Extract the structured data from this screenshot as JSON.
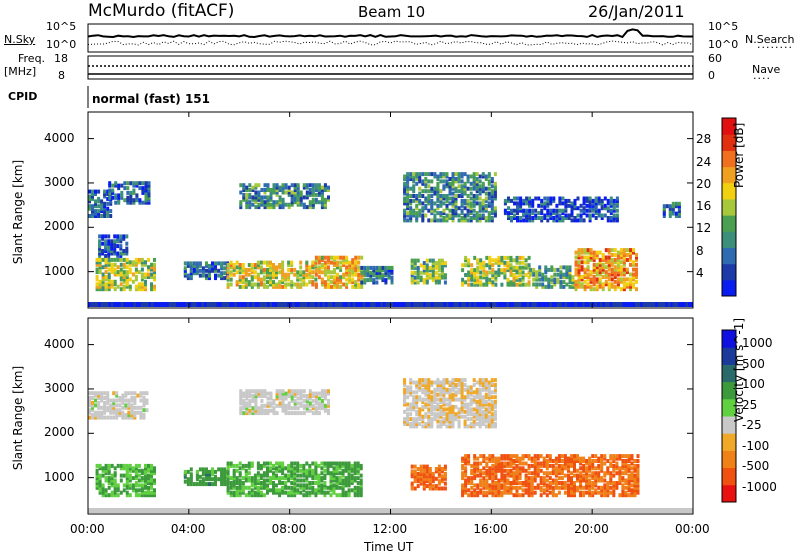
{
  "header": {
    "station": "McMurdo (fitACF)",
    "beam": "Beam 10",
    "date": "26/Jan/2011"
  },
  "params": {
    "nsky_label": "N.Sky",
    "nsky_ticks": [
      "10^5",
      "10^0"
    ],
    "nsearch_label": "N.Search",
    "nsearch_ticks": [
      "10^5",
      "10^0"
    ],
    "freq_label": "Freq.",
    "freq_unit": "[MHz]",
    "freq_ticks": [
      "18",
      "8"
    ],
    "nave_label": "Nave",
    "nave_ticks": [
      "60",
      "0"
    ],
    "cpid_label": "CPID",
    "cpid_value": "normal (fast) 151"
  },
  "colors": {
    "power": [
      "#0a1df0",
      "#1c3aa8",
      "#2f6bb0",
      "#3c8f7a",
      "#4aa050",
      "#a8c83c",
      "#f0d010",
      "#f0a020",
      "#f07020",
      "#e03010",
      "#e01010"
    ],
    "velocity": [
      "#e81010",
      "#f05010",
      "#f08018",
      "#f0a828",
      "#c8c8c8",
      "#60d040",
      "#3c9a3c",
      "#2a6a6a",
      "#1c3a9a",
      "#1010e0"
    ]
  },
  "chart_data": [
    {
      "type": "heatmap",
      "title": "Power",
      "xlabel": "Time UT",
      "ylabel": "Slant Range [km]",
      "x_ticks": [
        "00:00",
        "04:00",
        "08:00",
        "12:00",
        "16:00",
        "20:00",
        "00:00"
      ],
      "x_range_hours": [
        0,
        24
      ],
      "y_ticks": [
        1000,
        2000,
        3000,
        4000
      ],
      "y_range_km": [
        180,
        4600
      ],
      "colorbar_label": "Power [dB]",
      "colorbar_ticks": [
        4,
        8,
        12,
        16,
        20,
        24,
        28
      ],
      "colorbar_range": [
        0,
        32
      ],
      "regions": [
        {
          "t0": 0.3,
          "t1": 2.7,
          "r0": 650,
          "r1": 1350,
          "level": 16
        },
        {
          "t0": 0.4,
          "t1": 1.5,
          "r0": 1400,
          "r1": 1850,
          "level": 6
        },
        {
          "t0": 0.0,
          "t1": 0.9,
          "r0": 2300,
          "r1": 2900,
          "level": 6
        },
        {
          "t0": 0.8,
          "t1": 2.4,
          "r0": 2600,
          "r1": 3050,
          "level": 7
        },
        {
          "t0": 3.8,
          "t1": 5.6,
          "r0": 900,
          "r1": 1250,
          "level": 7
        },
        {
          "t0": 5.5,
          "t1": 9.0,
          "r0": 700,
          "r1": 1300,
          "level": 18
        },
        {
          "t0": 6.0,
          "t1": 9.5,
          "r0": 2500,
          "r1": 3000,
          "level": 10
        },
        {
          "t0": 9.0,
          "t1": 10.8,
          "r0": 700,
          "r1": 1400,
          "level": 20
        },
        {
          "t0": 10.8,
          "t1": 12.0,
          "r0": 800,
          "r1": 1150,
          "level": 8
        },
        {
          "t0": 12.8,
          "t1": 14.2,
          "r0": 800,
          "r1": 1350,
          "level": 14
        },
        {
          "t0": 12.5,
          "t1": 16.2,
          "r0": 2200,
          "r1": 3300,
          "level": 10
        },
        {
          "t0": 14.8,
          "t1": 17.5,
          "r0": 750,
          "r1": 1400,
          "level": 16
        },
        {
          "t0": 17.5,
          "t1": 19.2,
          "r0": 700,
          "r1": 1150,
          "level": 12
        },
        {
          "t0": 19.3,
          "t1": 21.8,
          "r0": 650,
          "r1": 1550,
          "level": 22
        },
        {
          "t0": 16.5,
          "t1": 21.0,
          "r0": 2200,
          "r1": 2700,
          "level": 5
        },
        {
          "t0": 22.8,
          "t1": 23.5,
          "r0": 2300,
          "r1": 2600,
          "level": 7
        }
      ]
    },
    {
      "type": "heatmap",
      "title": "Velocity",
      "xlabel": "Time UT",
      "ylabel": "Slant Range [km]",
      "x_ticks": [
        "00:00",
        "04:00",
        "08:00",
        "12:00",
        "16:00",
        "20:00",
        "00:00"
      ],
      "x_range_hours": [
        0,
        24
      ],
      "y_ticks": [
        1000,
        2000,
        3000,
        4000
      ],
      "y_range_km": [
        180,
        4600
      ],
      "colorbar_label": "Velocity [m s^-1]",
      "colorbar_ticks": [
        1000,
        500,
        100,
        25,
        -25,
        -100,
        -500,
        -1000
      ],
      "regions": [
        {
          "t0": 0.3,
          "t1": 2.7,
          "r0": 650,
          "r1": 1350,
          "level": 0.6
        },
        {
          "t0": 3.8,
          "t1": 5.6,
          "r0": 900,
          "r1": 1250,
          "level": 0.65
        },
        {
          "t0": 5.5,
          "t1": 10.8,
          "r0": 650,
          "r1": 1400,
          "level": 0.62
        },
        {
          "t0": 12.8,
          "t1": 14.2,
          "r0": 800,
          "r1": 1350,
          "level": 0.2
        },
        {
          "t0": 14.8,
          "t1": 21.8,
          "r0": 650,
          "r1": 1550,
          "level": 0.2
        },
        {
          "t0": 12.5,
          "t1": 16.2,
          "r0": 2200,
          "r1": 3300,
          "level": 0.42
        },
        {
          "t0": 6.0,
          "t1": 9.5,
          "r0": 2500,
          "r1": 3000,
          "level": 0.45
        },
        {
          "t0": 0.0,
          "t1": 2.4,
          "r0": 2400,
          "r1": 3000,
          "level": 0.45
        }
      ]
    }
  ]
}
